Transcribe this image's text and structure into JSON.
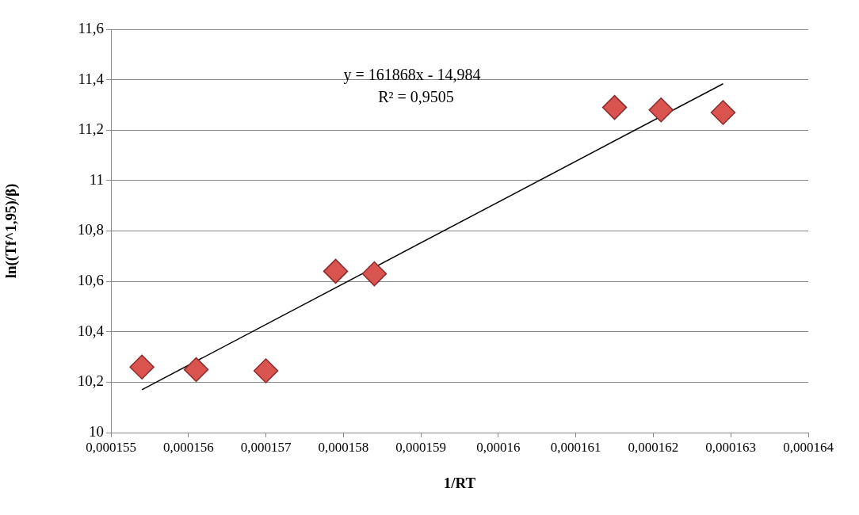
{
  "chart_data": {
    "type": "scatter",
    "xlabel": "1/RT",
    "ylabel": "ln((Tf^1,95)/β)",
    "xlim": [
      0.000155,
      0.000164
    ],
    "xticks": [
      {
        "value": 0.000155,
        "label": "0,000155"
      },
      {
        "value": 0.000156,
        "label": "0,000156"
      },
      {
        "value": 0.000157,
        "label": "0,000157"
      },
      {
        "value": 0.000158,
        "label": "0,000158"
      },
      {
        "value": 0.000159,
        "label": "0,000159"
      },
      {
        "value": 0.00016,
        "label": "0,00016"
      },
      {
        "value": 0.000161,
        "label": "0,000161"
      },
      {
        "value": 0.000162,
        "label": "0,000162"
      },
      {
        "value": 0.000163,
        "label": "0,000163"
      },
      {
        "value": 0.000164,
        "label": "0,000164"
      }
    ],
    "ylim": [
      10,
      11.6
    ],
    "yticks": [
      10,
      {
        "value": 10.2,
        "label": "10,2"
      },
      {
        "value": 10.4,
        "label": "10,4"
      },
      {
        "value": 10.6,
        "label": "10,6"
      },
      {
        "value": 10.8,
        "label": "10,8"
      },
      11,
      {
        "value": 11.2,
        "label": "11,2"
      },
      {
        "value": 11.4,
        "label": "11,4"
      },
      {
        "value": 11.6,
        "label": "11,6"
      }
    ],
    "grid": "y",
    "legend": false,
    "series": [
      {
        "type": "scatter",
        "marker": "diamond",
        "color": "#d9534f",
        "x": [
          0.0001554,
          0.0001561,
          0.000157,
          0.0001579,
          0.0001584,
          0.0001615,
          0.0001621,
          0.0001629
        ],
        "values": [
          10.26,
          10.25,
          10.245,
          10.64,
          10.63,
          11.29,
          11.28,
          11.27
        ]
      },
      {
        "type": "line",
        "marker": "none",
        "color": "#000000",
        "x": [
          0.0001554,
          0.0001629
        ],
        "values": [
          10.17,
          11.384
        ]
      }
    ],
    "annotations": [
      "y = 161868x - 14,984",
      "R² = 0,9505"
    ]
  }
}
